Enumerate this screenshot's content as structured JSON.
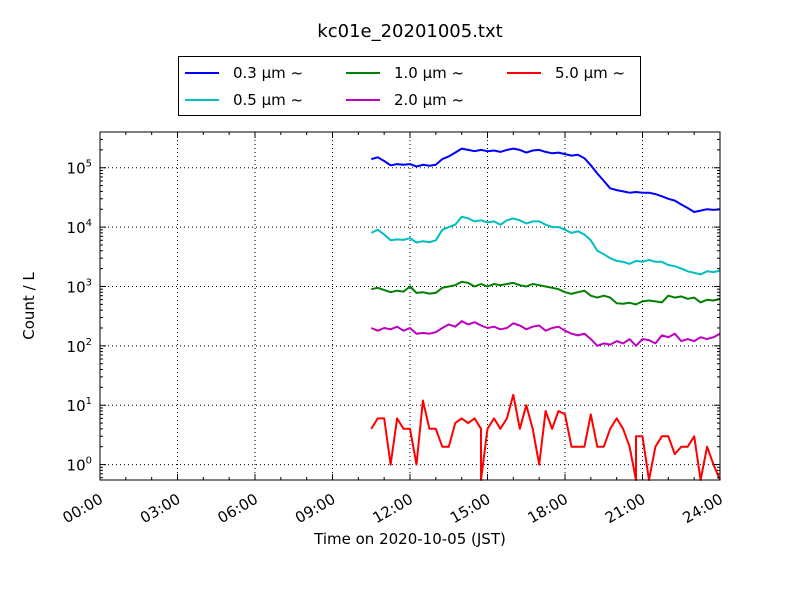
{
  "chart_data": {
    "type": "line",
    "title": "kc01e_20201005.txt",
    "xlabel": "Time on 2020-10-05 (JST)",
    "ylabel": "Count / L",
    "x_ticks": [
      "00:00",
      "03:00",
      "06:00",
      "09:00",
      "12:00",
      "15:00",
      "18:00",
      "21:00",
      "24:00"
    ],
    "xlim_hours": [
      0,
      24
    ],
    "yscale": "log",
    "ylim": [
      0.55,
      400000
    ],
    "y_ticks": [
      {
        "base": "10",
        "exp": "0"
      },
      {
        "base": "10",
        "exp": "1"
      },
      {
        "base": "10",
        "exp": "2"
      },
      {
        "base": "10",
        "exp": "3"
      },
      {
        "base": "10",
        "exp": "4"
      },
      {
        "base": "10",
        "exp": "5"
      }
    ],
    "grid": "dotted",
    "legend_position": "top, above plot",
    "legend_suffix": "μm ~",
    "series": [
      {
        "name": "0.3 μm ~",
        "size": "0.3",
        "color": "#0000ff",
        "points": [
          [
            10.5,
            140000
          ],
          [
            10.75,
            150000
          ],
          [
            11.0,
            130000
          ],
          [
            11.25,
            110000
          ],
          [
            11.5,
            115000
          ],
          [
            11.75,
            112000
          ],
          [
            12.0,
            115000
          ],
          [
            12.25,
            105000
          ],
          [
            12.5,
            112000
          ],
          [
            12.75,
            108000
          ],
          [
            13.0,
            112000
          ],
          [
            13.25,
            140000
          ],
          [
            13.5,
            155000
          ],
          [
            13.75,
            180000
          ],
          [
            14.0,
            210000
          ],
          [
            14.25,
            200000
          ],
          [
            14.5,
            190000
          ],
          [
            14.75,
            200000
          ],
          [
            15.0,
            190000
          ],
          [
            15.25,
            195000
          ],
          [
            15.5,
            185000
          ],
          [
            15.75,
            200000
          ],
          [
            16.0,
            210000
          ],
          [
            16.25,
            200000
          ],
          [
            16.5,
            180000
          ],
          [
            16.75,
            195000
          ],
          [
            17.0,
            200000
          ],
          [
            17.25,
            185000
          ],
          [
            17.5,
            175000
          ],
          [
            17.75,
            180000
          ],
          [
            18.0,
            170000
          ],
          [
            18.25,
            160000
          ],
          [
            18.5,
            165000
          ],
          [
            18.75,
            145000
          ],
          [
            19.0,
            110000
          ],
          [
            19.25,
            80000
          ],
          [
            19.5,
            60000
          ],
          [
            19.75,
            45000
          ],
          [
            20.0,
            42000
          ],
          [
            20.25,
            40000
          ],
          [
            20.5,
            38000
          ],
          [
            20.75,
            39000
          ],
          [
            21.0,
            38000
          ],
          [
            21.25,
            38000
          ],
          [
            21.5,
            36000
          ],
          [
            21.75,
            33000
          ],
          [
            22.0,
            30000
          ],
          [
            22.25,
            28000
          ],
          [
            22.5,
            24000
          ],
          [
            22.75,
            21000
          ],
          [
            23.0,
            18000
          ],
          [
            23.25,
            19000
          ],
          [
            23.5,
            20000
          ],
          [
            23.75,
            19500
          ],
          [
            24.0,
            20000
          ]
        ]
      },
      {
        "name": "0.5 μm ~",
        "size": "0.5",
        "color": "#00bfbf",
        "points": [
          [
            10.5,
            8000
          ],
          [
            10.75,
            9000
          ],
          [
            11.0,
            7500
          ],
          [
            11.25,
            6000
          ],
          [
            11.5,
            6200
          ],
          [
            11.75,
            6100
          ],
          [
            12.0,
            6500
          ],
          [
            12.25,
            5500
          ],
          [
            12.5,
            5800
          ],
          [
            12.75,
            5600
          ],
          [
            13.0,
            6000
          ],
          [
            13.25,
            9000
          ],
          [
            13.5,
            10000
          ],
          [
            13.75,
            11000
          ],
          [
            14.0,
            15000
          ],
          [
            14.25,
            14000
          ],
          [
            14.5,
            12500
          ],
          [
            14.75,
            13000
          ],
          [
            15.0,
            12000
          ],
          [
            15.25,
            12500
          ],
          [
            15.5,
            11000
          ],
          [
            15.75,
            13000
          ],
          [
            16.0,
            14000
          ],
          [
            16.25,
            13000
          ],
          [
            16.5,
            11500
          ],
          [
            16.75,
            12500
          ],
          [
            17.0,
            12500
          ],
          [
            17.25,
            11000
          ],
          [
            17.5,
            10000
          ],
          [
            17.75,
            10000
          ],
          [
            18.0,
            9000
          ],
          [
            18.25,
            8000
          ],
          [
            18.5,
            8500
          ],
          [
            18.75,
            7500
          ],
          [
            19.0,
            6000
          ],
          [
            19.25,
            4000
          ],
          [
            19.5,
            3500
          ],
          [
            19.75,
            3000
          ],
          [
            20.0,
            2700
          ],
          [
            20.25,
            2600
          ],
          [
            20.5,
            2400
          ],
          [
            20.75,
            2700
          ],
          [
            21.0,
            2600
          ],
          [
            21.25,
            2800
          ],
          [
            21.5,
            2600
          ],
          [
            21.75,
            2600
          ],
          [
            22.0,
            2300
          ],
          [
            22.25,
            2200
          ],
          [
            22.5,
            2000
          ],
          [
            22.75,
            1800
          ],
          [
            23.0,
            1700
          ],
          [
            23.25,
            1600
          ],
          [
            23.5,
            1800
          ],
          [
            23.75,
            1750
          ],
          [
            24.0,
            1850
          ]
        ]
      },
      {
        "name": "1.0 μm ~",
        "size": "1.0",
        "color": "#008000",
        "points": [
          [
            10.5,
            900
          ],
          [
            10.75,
            950
          ],
          [
            11.0,
            870
          ],
          [
            11.25,
            800
          ],
          [
            11.5,
            850
          ],
          [
            11.75,
            820
          ],
          [
            12.0,
            1000
          ],
          [
            12.25,
            780
          ],
          [
            12.5,
            800
          ],
          [
            12.75,
            760
          ],
          [
            13.0,
            780
          ],
          [
            13.25,
            950
          ],
          [
            13.5,
            1000
          ],
          [
            13.75,
            1050
          ],
          [
            14.0,
            1200
          ],
          [
            14.25,
            1150
          ],
          [
            14.5,
            1000
          ],
          [
            14.75,
            1100
          ],
          [
            15.0,
            1000
          ],
          [
            15.25,
            1100
          ],
          [
            15.5,
            1050
          ],
          [
            15.75,
            1100
          ],
          [
            16.0,
            1150
          ],
          [
            16.25,
            1050
          ],
          [
            16.5,
            1000
          ],
          [
            16.75,
            1100
          ],
          [
            17.0,
            1050
          ],
          [
            17.25,
            1000
          ],
          [
            17.5,
            950
          ],
          [
            17.75,
            900
          ],
          [
            18.0,
            800
          ],
          [
            18.25,
            750
          ],
          [
            18.5,
            800
          ],
          [
            18.75,
            850
          ],
          [
            19.0,
            700
          ],
          [
            19.25,
            650
          ],
          [
            19.5,
            700
          ],
          [
            19.75,
            650
          ],
          [
            20.0,
            520
          ],
          [
            20.25,
            510
          ],
          [
            20.5,
            530
          ],
          [
            20.75,
            500
          ],
          [
            21.0,
            560
          ],
          [
            21.25,
            580
          ],
          [
            21.5,
            560
          ],
          [
            21.75,
            540
          ],
          [
            22.0,
            700
          ],
          [
            22.25,
            650
          ],
          [
            22.5,
            680
          ],
          [
            22.75,
            620
          ],
          [
            23.0,
            650
          ],
          [
            23.25,
            540
          ],
          [
            23.5,
            600
          ],
          [
            23.75,
            580
          ],
          [
            24.0,
            620
          ]
        ]
      },
      {
        "name": "2.0 μm ~",
        "size": "2.0",
        "color": "#bf00bf",
        "points": [
          [
            10.5,
            200
          ],
          [
            10.75,
            180
          ],
          [
            11.0,
            200
          ],
          [
            11.25,
            190
          ],
          [
            11.5,
            210
          ],
          [
            11.75,
            180
          ],
          [
            12.0,
            200
          ],
          [
            12.25,
            160
          ],
          [
            12.5,
            165
          ],
          [
            12.75,
            160
          ],
          [
            13.0,
            170
          ],
          [
            13.25,
            200
          ],
          [
            13.5,
            230
          ],
          [
            13.75,
            210
          ],
          [
            14.0,
            260
          ],
          [
            14.25,
            230
          ],
          [
            14.5,
            250
          ],
          [
            14.75,
            220
          ],
          [
            15.0,
            200
          ],
          [
            15.25,
            210
          ],
          [
            15.5,
            190
          ],
          [
            15.75,
            200
          ],
          [
            16.0,
            240
          ],
          [
            16.25,
            220
          ],
          [
            16.5,
            190
          ],
          [
            16.75,
            210
          ],
          [
            17.0,
            220
          ],
          [
            17.25,
            180
          ],
          [
            17.5,
            200
          ],
          [
            17.75,
            210
          ],
          [
            18.0,
            180
          ],
          [
            18.25,
            160
          ],
          [
            18.5,
            150
          ],
          [
            18.75,
            160
          ],
          [
            19.0,
            130
          ],
          [
            19.25,
            100
          ],
          [
            19.5,
            110
          ],
          [
            19.75,
            105
          ],
          [
            20.0,
            120
          ],
          [
            20.25,
            110
          ],
          [
            20.5,
            130
          ],
          [
            20.75,
            100
          ],
          [
            21.0,
            130
          ],
          [
            21.25,
            125
          ],
          [
            21.5,
            110
          ],
          [
            21.75,
            150
          ],
          [
            22.0,
            140
          ],
          [
            22.25,
            160
          ],
          [
            22.5,
            120
          ],
          [
            22.75,
            130
          ],
          [
            23.0,
            120
          ],
          [
            23.25,
            140
          ],
          [
            23.5,
            130
          ],
          [
            23.75,
            140
          ],
          [
            24.0,
            160
          ]
        ]
      },
      {
        "name": "5.0 μm ~",
        "size": "5.0",
        "color": "#ff0000",
        "points": [
          [
            10.5,
            4
          ],
          [
            10.75,
            6
          ],
          [
            11.0,
            6
          ],
          [
            11.25,
            1
          ],
          [
            11.5,
            6
          ],
          [
            11.75,
            4
          ],
          [
            12.0,
            4
          ],
          [
            12.25,
            1
          ],
          [
            12.5,
            12
          ],
          [
            12.75,
            4
          ],
          [
            13.0,
            4
          ],
          [
            13.25,
            2
          ],
          [
            13.5,
            2
          ],
          [
            13.75,
            5
          ],
          [
            14.0,
            6
          ],
          [
            14.25,
            5
          ],
          [
            14.5,
            6
          ],
          [
            14.75,
            4
          ],
          [
            14.75,
            0.5
          ],
          [
            15.0,
            4
          ],
          [
            15.25,
            6
          ],
          [
            15.5,
            4
          ],
          [
            15.75,
            6
          ],
          [
            16.0,
            15
          ],
          [
            16.25,
            4
          ],
          [
            16.5,
            10
          ],
          [
            16.75,
            4
          ],
          [
            17.0,
            1
          ],
          [
            17.25,
            8
          ],
          [
            17.5,
            4
          ],
          [
            17.75,
            8
          ],
          [
            18.0,
            7
          ],
          [
            18.25,
            2
          ],
          [
            18.5,
            2
          ],
          [
            18.75,
            2
          ],
          [
            19.0,
            7
          ],
          [
            19.25,
            2
          ],
          [
            19.5,
            2
          ],
          [
            19.75,
            4
          ],
          [
            20.0,
            6
          ],
          [
            20.25,
            4
          ],
          [
            20.5,
            2
          ],
          [
            20.75,
            0.5
          ],
          [
            20.75,
            3
          ],
          [
            21.0,
            3
          ],
          [
            21.25,
            0.5
          ],
          [
            21.5,
            2
          ],
          [
            21.75,
            3
          ],
          [
            22.0,
            3
          ],
          [
            22.25,
            1.5
          ],
          [
            22.5,
            2
          ],
          [
            22.75,
            2
          ],
          [
            23.0,
            3
          ],
          [
            23.25,
            0.5
          ],
          [
            23.5,
            2
          ],
          [
            23.75,
            1
          ],
          [
            24.0,
            0.5
          ]
        ]
      }
    ]
  }
}
